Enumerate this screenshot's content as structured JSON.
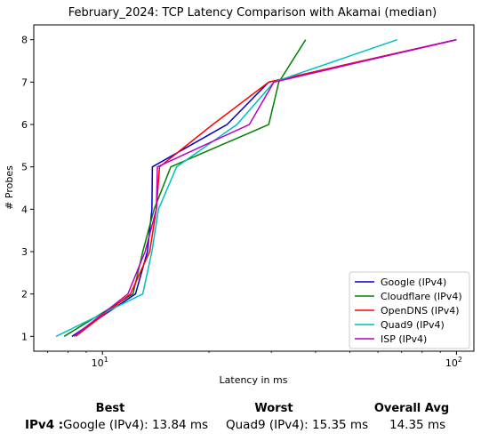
{
  "chart_data": {
    "type": "line",
    "title": "February_2024: TCP Latency Comparison with Akamai (median)",
    "xlabel": "Latency in ms",
    "ylabel": "# Probes",
    "xscale": "log",
    "xlim": [
      6.4,
      112
    ],
    "ylim": [
      0.65,
      8.35
    ],
    "xticks": [
      {
        "value": 10,
        "base": "10",
        "exp": "1"
      },
      {
        "value": 100,
        "base": "10",
        "exp": "2"
      }
    ],
    "yticks": [
      1,
      2,
      3,
      4,
      5,
      6,
      7,
      8
    ],
    "grid": false,
    "legend_position": "lower-right",
    "series": [
      {
        "name": "Google (IPv4)",
        "color": "#0000cc",
        "points": [
          [
            8.2,
            1
          ],
          [
            12.4,
            2
          ],
          [
            13.4,
            3
          ],
          [
            13.8,
            4
          ],
          [
            13.84,
            5
          ],
          [
            22.5,
            6
          ],
          [
            29.5,
            7
          ],
          [
            100,
            8
          ]
        ]
      },
      {
        "name": "Cloudflare (IPv4)",
        "color": "#008000",
        "points": [
          [
            7.8,
            1
          ],
          [
            12.2,
            2
          ],
          [
            13.0,
            3
          ],
          [
            14.0,
            4
          ],
          [
            15.6,
            5
          ],
          [
            29.5,
            6
          ],
          [
            31.5,
            7
          ],
          [
            37.5,
            8
          ]
        ]
      },
      {
        "name": "OpenDNS (IPv4)",
        "color": "#ff0000",
        "points": [
          [
            8.4,
            1
          ],
          [
            12.0,
            2
          ],
          [
            13.6,
            3
          ],
          [
            14.2,
            4
          ],
          [
            14.5,
            5
          ],
          [
            20.5,
            6
          ],
          [
            29.5,
            7
          ],
          [
            100,
            8
          ]
        ]
      },
      {
        "name": "Quad9 (IPv4)",
        "color": "#00bfbf",
        "points": [
          [
            7.4,
            1
          ],
          [
            13.0,
            2
          ],
          [
            13.8,
            3
          ],
          [
            14.4,
            4
          ],
          [
            16.2,
            5
          ],
          [
            24.0,
            6
          ],
          [
            30.5,
            7
          ],
          [
            68,
            8
          ]
        ]
      },
      {
        "name": "ISP (IPv4)",
        "color": "#bf00bf",
        "points": [
          [
            8.3,
            1
          ],
          [
            11.8,
            2
          ],
          [
            13.2,
            3
          ],
          [
            14.2,
            4
          ],
          [
            14.3,
            5
          ],
          [
            26.0,
            6
          ],
          [
            30.5,
            7
          ],
          [
            100,
            8
          ]
        ]
      }
    ]
  },
  "summary": {
    "best_header": "Best",
    "worst_header": "Worst",
    "avg_header": "Overall Avg",
    "row_label": "IPv4 :",
    "best_value": "Google (IPv4): 13.84 ms",
    "worst_value": "Quad9 (IPv4): 15.35 ms",
    "avg_value": "14.35 ms"
  }
}
